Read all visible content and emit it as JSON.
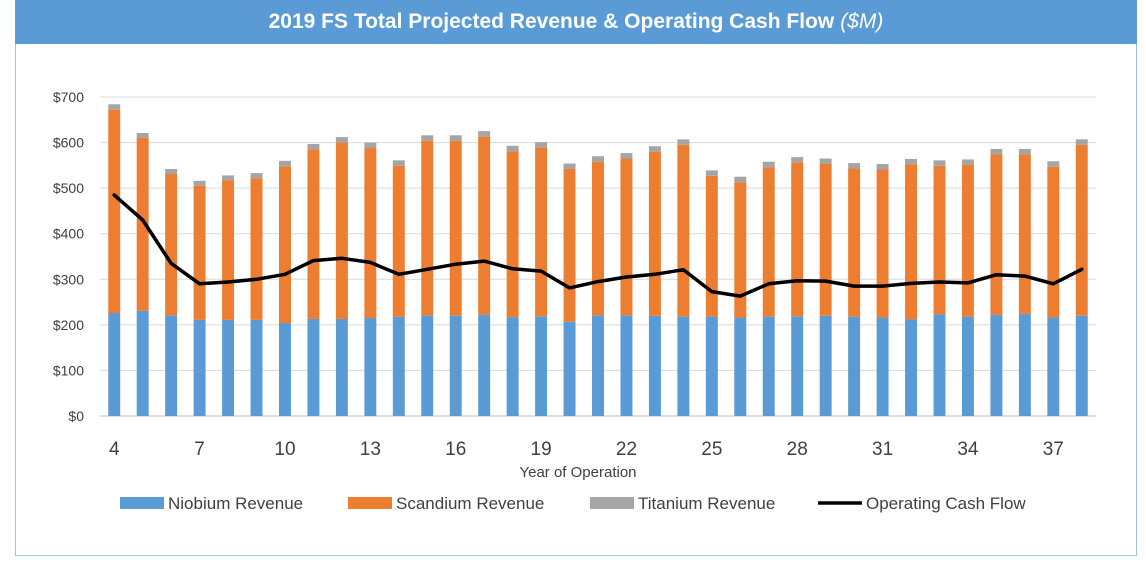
{
  "header": {
    "title": "2019 FS Total Projected Revenue & Operating Cash Flow",
    "title_unit": "($M)"
  },
  "chart_data": {
    "type": "bar",
    "stacked": true,
    "title": "2019 FS Total Projected Revenue & Operating Cash Flow ($M)",
    "xlabel": "Year of Operation",
    "ylabel": "",
    "ylim": [
      0,
      700
    ],
    "yticks": [
      0,
      100,
      200,
      300,
      400,
      500,
      600,
      700
    ],
    "ytick_labels": [
      "$0",
      "$100",
      "$200",
      "$300",
      "$400",
      "$500",
      "$600",
      "$700"
    ],
    "xtick_labels": [
      "4",
      "7",
      "10",
      "13",
      "16",
      "19",
      "22",
      "25",
      "28",
      "31",
      "34",
      "37"
    ],
    "grid": true,
    "legend_position": "bottom",
    "x": [
      4,
      5,
      6,
      7,
      8,
      9,
      10,
      11,
      12,
      13,
      14,
      15,
      16,
      17,
      18,
      19,
      20,
      21,
      22,
      23,
      24,
      25,
      26,
      27,
      28,
      29,
      30,
      31,
      32,
      33,
      34,
      35,
      36,
      37,
      38
    ],
    "series": [
      {
        "name": "Niobium Revenue",
        "kind": "bar",
        "color": "#5b9bd5",
        "values": [
          226,
          231,
          221,
          211,
          211,
          211,
          204,
          213,
          213,
          215,
          218,
          221,
          220,
          222,
          217,
          219,
          207,
          221,
          221,
          220,
          218,
          218,
          216,
          218,
          219,
          220,
          218,
          216,
          212,
          223,
          218,
          222,
          224,
          216,
          220
        ]
      },
      {
        "name": "Scandium Revenue",
        "kind": "bar",
        "color": "#ed7d31",
        "values": [
          446,
          379,
          310,
          294,
          306,
          311,
          344,
          372,
          387,
          373,
          331,
          383,
          384,
          391,
          364,
          370,
          335,
          337,
          344,
          360,
          377,
          309,
          297,
          328,
          337,
          333,
          325,
          325,
          340,
          326,
          333,
          352,
          350,
          331,
          375
        ]
      },
      {
        "name": "Titanium Revenue",
        "kind": "bar",
        "color": "#a5a5a5",
        "values": [
          12,
          11,
          11,
          11,
          11,
          11,
          12,
          12,
          12,
          12,
          12,
          12,
          12,
          12,
          12,
          12,
          12,
          12,
          12,
          12,
          12,
          12,
          12,
          12,
          12,
          12,
          12,
          12,
          12,
          12,
          12,
          12,
          12,
          12,
          12
        ]
      },
      {
        "name": "Operating Cash Flow",
        "kind": "line",
        "color": "#000000",
        "values": [
          485,
          430,
          335,
          290,
          294,
          300,
          311,
          341,
          346,
          337,
          311,
          322,
          333,
          340,
          323,
          318,
          281,
          295,
          305,
          311,
          321,
          273,
          263,
          290,
          297,
          296,
          285,
          285,
          291,
          294,
          292,
          310,
          307,
          290,
          322
        ]
      }
    ]
  }
}
